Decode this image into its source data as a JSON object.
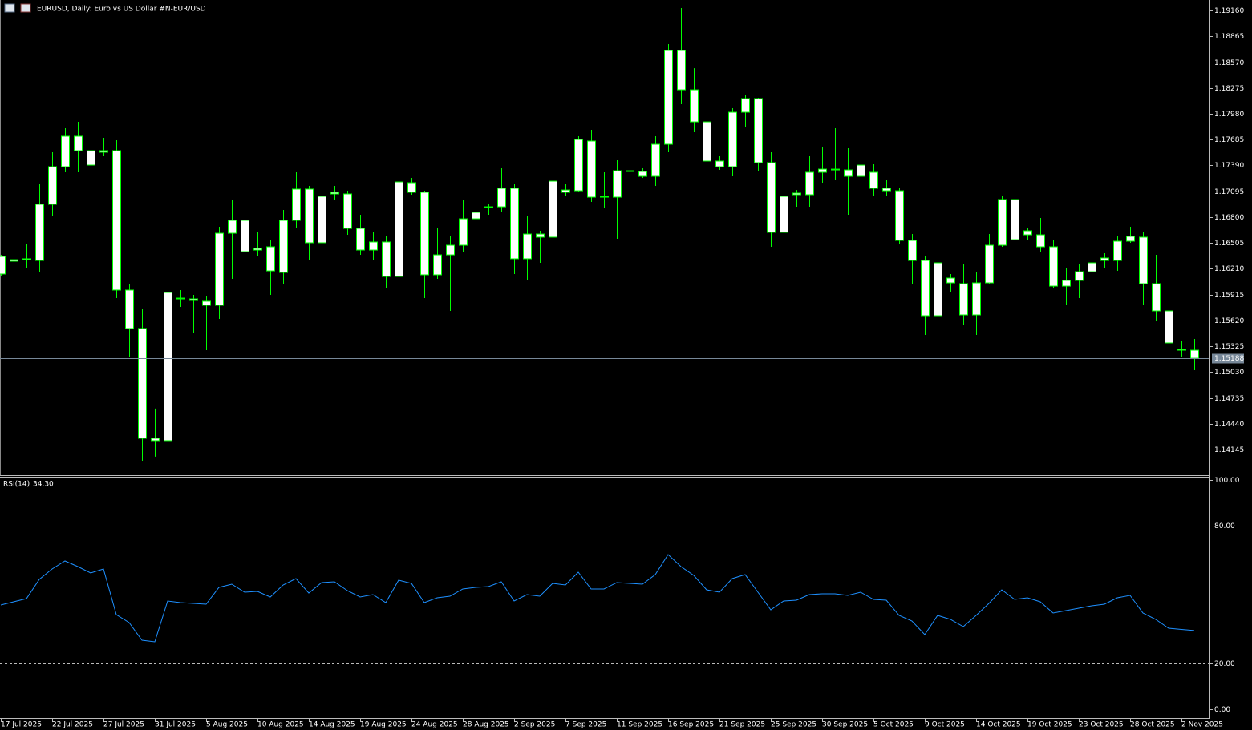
{
  "chart_data": [
    {
      "type": "candlestick",
      "title": "EURUSD, Daily:  Euro vs US Dollar #N-EUR/USD",
      "categories": [
        "17 Jul 2025",
        null,
        null,
        null,
        "22 Jul 2025",
        null,
        null,
        null,
        "27 Jul 2025",
        null,
        null,
        null,
        "31 Jul 2025",
        null,
        null,
        null,
        "5 Aug 2025",
        null,
        null,
        null,
        "10 Aug 2025",
        null,
        null,
        null,
        "14 Aug 2025",
        null,
        null,
        null,
        "19 Aug 2025",
        null,
        null,
        null,
        "24 Aug 2025",
        null,
        null,
        null,
        "28 Aug 2025",
        null,
        null,
        null,
        "2 Sep 2025",
        null,
        null,
        null,
        "7 Sep 2025",
        null,
        null,
        null,
        "11 Sep 2025",
        null,
        null,
        null,
        "16 Sep 2025",
        null,
        null,
        null,
        "21 Sep 2025",
        null,
        null,
        null,
        "25 Sep 2025",
        null,
        null,
        null,
        "30 Sep 2025",
        null,
        null,
        null,
        "5 Oct 2025",
        null,
        null,
        null,
        "9 Oct 2025",
        null,
        null,
        null,
        "14 Oct 2025",
        null,
        null,
        null,
        "19 Oct 2025",
        null,
        null,
        null,
        "23 Oct 2025",
        null,
        null,
        null,
        "28 Oct 2025",
        null,
        null,
        null,
        "2 Nov 2025",
        null
      ],
      "open": [
        1.1615,
        1.16296,
        1.16314,
        1.16305,
        1.16946,
        1.17376,
        1.17724,
        1.17559,
        1.17541,
        1.17559,
        1.15967,
        1.15528,
        1.14274,
        1.14247,
        1.15866,
        1.15866,
        1.15839,
        1.15793,
        1.16616,
        1.16763,
        1.16443,
        1.16461,
        1.16168,
        1.16763,
        1.1712,
        1.16507,
        1.17083,
        1.17065,
        1.16671,
        1.16424,
        1.16516,
        1.16122,
        1.17193,
        1.17083,
        1.16141,
        1.16369,
        1.16479,
        1.16781,
        1.16909,
        1.16918,
        1.17129,
        1.16324,
        1.16607,
        1.16571,
        1.17083,
        1.17101,
        1.17669,
        1.17037,
        1.17028,
        1.1733,
        1.17321,
        1.17266,
        1.17632,
        1.18703,
        1.18254,
        1.17888,
        1.1744,
        1.17376,
        1.17998,
        1.18154,
        1.17422,
        1.16626,
        1.17056,
        1.17056,
        1.17312,
        1.17348,
        1.17339,
        1.17266,
        1.17312,
        1.17129,
        1.17101,
        1.16534,
        1.16305,
        1.15674,
        1.16104,
        1.1604,
        1.15683,
        1.16049,
        1.16479,
        1.17001,
        1.16644,
        1.16598,
        1.16461,
        1.16012,
        1.16077,
        1.16177,
        1.16305,
        1.16305,
        1.16525,
        1.16571,
        1.1604,
        1.15729,
        1.1528,
        1.1528
      ],
      "high": [
        1.16369,
        1.16717,
        1.16488,
        1.17175,
        1.17541,
        1.17815,
        1.17888,
        1.17632,
        1.17705,
        1.17678,
        1.16031,
        1.15756,
        1.14613,
        1.15967,
        1.15967,
        1.15912,
        1.15894,
        1.1669,
        1.16992,
        1.16809,
        1.16626,
        1.16534,
        1.16882,
        1.17312,
        1.17156,
        1.17129,
        1.17156,
        1.17101,
        1.16827,
        1.16626,
        1.1658,
        1.17403,
        1.17248,
        1.17101,
        1.16671,
        1.1658,
        1.16992,
        1.17083,
        1.16955,
        1.17358,
        1.17175,
        1.16809,
        1.16644,
        1.17586,
        1.17175,
        1.17724,
        1.17797,
        1.17312,
        1.17449,
        1.17467,
        1.17358,
        1.17724,
        1.18776,
        1.19188,
        1.18501,
        1.17925,
        1.17495,
        1.18044,
        1.18199,
        1.18163,
        1.17541,
        1.17083,
        1.1711,
        1.17495,
        1.17605,
        1.17815,
        1.17586,
        1.17605,
        1.17403,
        1.1722,
        1.17129,
        1.16607,
        1.16351,
        1.16488,
        1.1615,
        1.1626,
        1.16168,
        1.16607,
        1.17046,
        1.17312,
        1.16671,
        1.1679,
        1.16534,
        1.16214,
        1.1626,
        1.16507,
        1.16388,
        1.1658,
        1.1669,
        1.16626,
        1.16369,
        1.15775,
        1.1539,
        1.15409
      ],
      "low": [
        1.16122,
        1.16141,
        1.16214,
        1.16168,
        1.16809,
        1.17312,
        1.17312,
        1.17037,
        1.17495,
        1.15875,
        1.15207,
        1.14018,
        1.14064,
        1.13926,
        1.15775,
        1.15482,
        1.1528,
        1.15637,
        1.16095,
        1.1626,
        1.16351,
        1.15912,
        1.16031,
        1.16671,
        1.16305,
        1.1647,
        1.16992,
        1.16598,
        1.16369,
        1.16305,
        1.15985,
        1.1582,
        1.17056,
        1.15875,
        1.16095,
        1.15729,
        1.16397,
        1.16763,
        1.16827,
        1.16854,
        1.1615,
        1.16077,
        1.16278,
        1.16534,
        1.17037,
        1.17083,
        1.16973,
        1.169,
        1.16552,
        1.17266,
        1.17248,
        1.17156,
        1.17541,
        1.1809,
        1.17769,
        1.17312,
        1.17339,
        1.17266,
        1.17833,
        1.1733,
        1.16461,
        1.16534,
        1.16918,
        1.16918,
        1.17193,
        1.1722,
        1.16827,
        1.17175,
        1.17037,
        1.17037,
        1.16488,
        1.16031,
        1.15454,
        1.15637,
        1.15939,
        1.15573,
        1.15454,
        1.16031,
        1.16461,
        1.16516,
        1.16534,
        1.16406,
        1.15985,
        1.15802,
        1.15875,
        1.16122,
        1.16214,
        1.16186,
        1.16507,
        1.15802,
        1.15619,
        1.15207,
        1.15207,
        1.15052
      ],
      "close": [
        1.16351,
        1.16314,
        1.16324,
        1.16946,
        1.17376,
        1.17724,
        1.17559,
        1.17394,
        1.17559,
        1.15967,
        1.15528,
        1.14274,
        1.14247,
        1.15939,
        1.15875,
        1.15848,
        1.15793,
        1.16616,
        1.16763,
        1.16406,
        1.16424,
        1.16186,
        1.16763,
        1.1712,
        1.16507,
        1.17037,
        1.17065,
        1.16671,
        1.16424,
        1.16516,
        1.16122,
        1.17202,
        1.17083,
        1.16141,
        1.16369,
        1.16479,
        1.16781,
        1.16854,
        1.16918,
        1.17129,
        1.16324,
        1.16607,
        1.16571,
        1.17211,
        1.1711,
        1.17687,
        1.17028,
        1.17028,
        1.1733,
        1.17321,
        1.17266,
        1.17632,
        1.18703,
        1.18254,
        1.17888,
        1.1744,
        1.17376,
        1.17998,
        1.18154,
        1.17422,
        1.16626,
        1.17037,
        1.17074,
        1.17312,
        1.17348,
        1.17339,
        1.17266,
        1.17394,
        1.17129,
        1.17101,
        1.16534,
        1.16305,
        1.15674,
        1.16278,
        1.16049,
        1.15683,
        1.16049,
        1.16479,
        1.17001,
        1.16543,
        1.16598,
        1.16461,
        1.16012,
        1.16077,
        1.16177,
        1.16278,
        1.16333,
        1.16525,
        1.1658,
        1.1604,
        1.15729,
        1.15363,
        1.1529,
        1.15188
      ],
      "ylim": [
        1.13862,
        1.19252
      ],
      "yticks": [
        {
          "value": 1.1916,
          "label": "1.19160"
        },
        {
          "value": 1.18865,
          "label": "1.18865"
        },
        {
          "value": 1.1857,
          "label": "1.18570"
        },
        {
          "value": 1.18275,
          "label": "1.18275"
        },
        {
          "value": 1.1798,
          "label": "1.17980"
        },
        {
          "value": 1.17685,
          "label": "1.17685"
        },
        {
          "value": 1.1739,
          "label": "1.17390"
        },
        {
          "value": 1.17095,
          "label": "1.17095"
        },
        {
          "value": 1.168,
          "label": "1.16800"
        },
        {
          "value": 1.16505,
          "label": "1.16505"
        },
        {
          "value": 1.1621,
          "label": "1.16210"
        },
        {
          "value": 1.15915,
          "label": "1.15915"
        },
        {
          "value": 1.1562,
          "label": "1.15620"
        },
        {
          "value": 1.15325,
          "label": "1.15325"
        },
        {
          "value": 1.1503,
          "label": "1.15030"
        },
        {
          "value": 1.14735,
          "label": "1.14735"
        },
        {
          "value": 1.1444,
          "label": "1.14440"
        },
        {
          "value": 1.14145,
          "label": "1.14145"
        }
      ],
      "current_price": {
        "value": 1.15188,
        "label": "1.15188"
      },
      "body_color": "#ffffff",
      "wick_color": "#00ff00",
      "price_line_color": "#778899"
    },
    {
      "type": "line",
      "title": "RSI(14)",
      "current_label": "34.30",
      "values": [
        45.45,
        46.85,
        48.25,
        56.64,
        61.19,
        64.69,
        62.24,
        59.44,
        61.19,
        41.26,
        37.76,
        30.07,
        29.37,
        47.2,
        46.5,
        46.15,
        45.8,
        53.15,
        54.55,
        51.05,
        51.4,
        48.95,
        54.2,
        56.99,
        50.7,
        55.24,
        55.59,
        51.75,
        48.95,
        50.0,
        46.5,
        56.29,
        54.9,
        46.5,
        48.6,
        49.3,
        52.45,
        53.15,
        53.5,
        55.59,
        47.2,
        50.0,
        49.3,
        54.9,
        54.2,
        59.79,
        52.45,
        52.45,
        55.24,
        54.9,
        54.55,
        58.74,
        67.48,
        62.24,
        58.39,
        52.1,
        51.05,
        56.99,
        58.74,
        51.05,
        43.36,
        47.2,
        47.55,
        50.0,
        50.35,
        50.35,
        49.65,
        51.05,
        47.9,
        47.55,
        40.91,
        38.46,
        32.52,
        40.91,
        39.16,
        36.01,
        40.91,
        46.15,
        52.1,
        47.9,
        48.6,
        46.85,
        41.96,
        43.01,
        44.06,
        45.1,
        45.8,
        48.6,
        49.65,
        41.96,
        39.16,
        35.31,
        34.8,
        34.3
      ],
      "color": "#1e90ff",
      "ylim": [
        0,
        100
      ],
      "yticks": [
        {
          "value": 100,
          "label": "100.00"
        },
        {
          "value": 80,
          "label": "80.00"
        },
        {
          "value": 20,
          "label": "20.00"
        },
        {
          "value": 0,
          "label": "0.00"
        }
      ],
      "dashed_grid": true
    }
  ]
}
